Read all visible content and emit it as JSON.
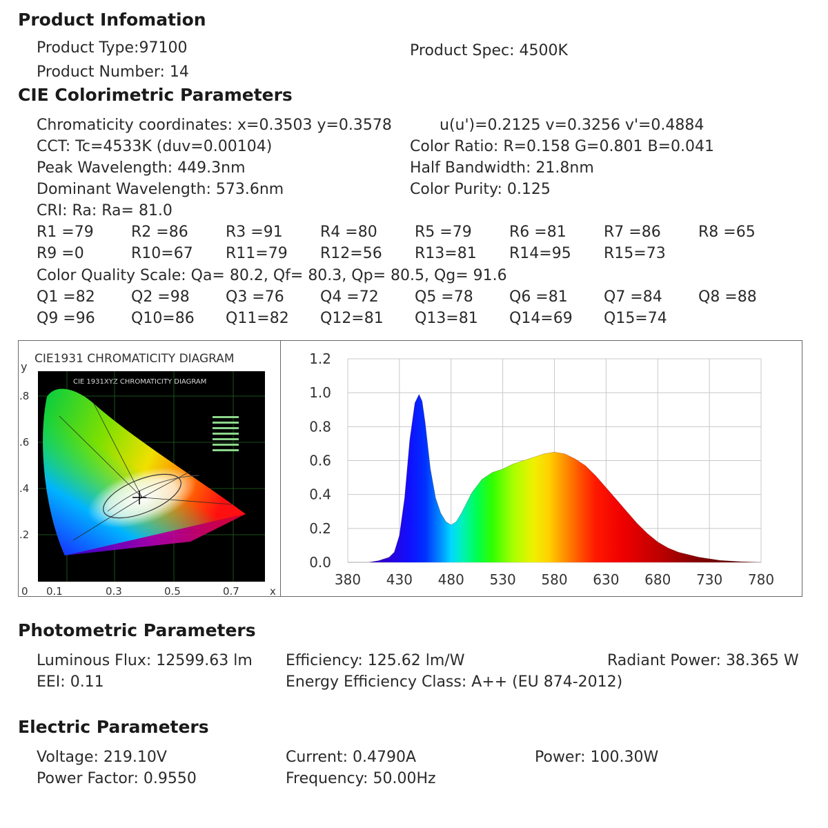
{
  "product_info": {
    "title": "Product Infomation",
    "type": "Product Type:97100",
    "number": "Product Number: 14",
    "spec": "Product Spec: 4500K"
  },
  "cie": {
    "title": "CIE Colorimetric Parameters",
    "chromaticity": "Chromaticity coordinates: x=0.3503 y=0.3578",
    "uv": "u(u')=0.2125 v=0.3256 v'=0.4884",
    "cct": "CCT: Tc=4533K (duv=0.00104)",
    "color_ratio": "Color Ratio: R=0.158  G=0.801  B=0.041",
    "peak": "Peak Wavelength: 449.3nm",
    "half_bandwidth": "Half Bandwidth: 21.8nm",
    "dominant": "Dominant Wavelength: 573.6nm",
    "purity": "Color Purity: 0.125",
    "cri": "CRI: Ra: Ra= 81.0",
    "r_row1": [
      "R1 =79",
      "R2 =86",
      "R3 =91",
      "R4 =80",
      "R5 =79",
      "R6 =81",
      "R7 =86",
      "R8 =65"
    ],
    "r_row2": [
      "R9 =0",
      "R10=67",
      "R11=79",
      "R12=56",
      "R13=81",
      "R14=95",
      "R15=73"
    ],
    "cqs": "Color Quality Scale: Qa= 80.2, Qf= 80.3, Qp= 80.5, Qg= 91.6",
    "q_row1": [
      "Q1 =82",
      "Q2 =98",
      "Q3 =76",
      "Q4 =72",
      "Q5 =78",
      "Q6 =81",
      "Q7 =84",
      "Q8 =88"
    ],
    "q_row2": [
      "Q9 =96",
      "Q10=86",
      "Q11=82",
      "Q12=81",
      "Q13=81",
      "Q14=69",
      "Q15=74"
    ]
  },
  "chromaticity_diagram": {
    "title": "CIE1931 CHROMATICITY DIAGRAM",
    "inner_title": "CIE 1931XYZ CHROMATICITY DIAGRAM",
    "y_label": "y",
    "x_label": "x",
    "y_ticks": [
      ".8",
      ".6",
      ".4",
      ".2"
    ],
    "x_ticks": [
      "0",
      "0.1",
      "0.3",
      "0.5",
      "0.7"
    ],
    "point": {
      "x": 0.3503,
      "y": 0.3578
    }
  },
  "chart_data": {
    "type": "area",
    "title": "",
    "xlabel": "",
    "ylabel": "",
    "xlim": [
      380,
      780
    ],
    "ylim": [
      0,
      1.2
    ],
    "x_ticks": [
      "380",
      "430",
      "480",
      "530",
      "580",
      "630",
      "680",
      "730",
      "780"
    ],
    "y_ticks": [
      "1.2",
      "1.0",
      "0.8",
      "0.6",
      "0.4",
      "0.2",
      "0.0"
    ],
    "grid": true,
    "series": [
      {
        "x": [
          380,
          400,
          410,
          420,
          425,
          430,
          435,
          440,
          445,
          449,
          452,
          455,
          460,
          465,
          470,
          475,
          480,
          485,
          490,
          495,
          500,
          510,
          520,
          530,
          540,
          550,
          560,
          570,
          580,
          590,
          600,
          610,
          620,
          630,
          640,
          650,
          660,
          670,
          680,
          690,
          700,
          720,
          740,
          760,
          780
        ],
        "values": [
          0.0,
          0.0,
          0.01,
          0.03,
          0.06,
          0.16,
          0.38,
          0.72,
          0.94,
          0.99,
          0.95,
          0.82,
          0.55,
          0.38,
          0.29,
          0.24,
          0.22,
          0.24,
          0.29,
          0.35,
          0.41,
          0.49,
          0.53,
          0.55,
          0.58,
          0.6,
          0.62,
          0.64,
          0.65,
          0.64,
          0.61,
          0.57,
          0.51,
          0.44,
          0.37,
          0.3,
          0.23,
          0.17,
          0.12,
          0.085,
          0.06,
          0.03,
          0.012,
          0.004,
          0.0
        ]
      }
    ]
  },
  "photometric": {
    "title": "Photometric Parameters",
    "flux": "Luminous Flux: 12599.63 lm",
    "efficiency": "Efficiency: 125.62 lm/W",
    "radiant": "Radiant Power: 38.365 W",
    "eei": "EEI:  0.11",
    "energy_class": "Energy Efficiency Class: A++ (EU 874-2012)"
  },
  "electric": {
    "title": "Electric Parameters",
    "voltage": "Voltage: 219.10V",
    "current": "Current: 0.4790A",
    "power": "Power: 100.30W",
    "power_factor": "Power Factor: 0.9550",
    "frequency": "Frequency: 50.00Hz"
  }
}
